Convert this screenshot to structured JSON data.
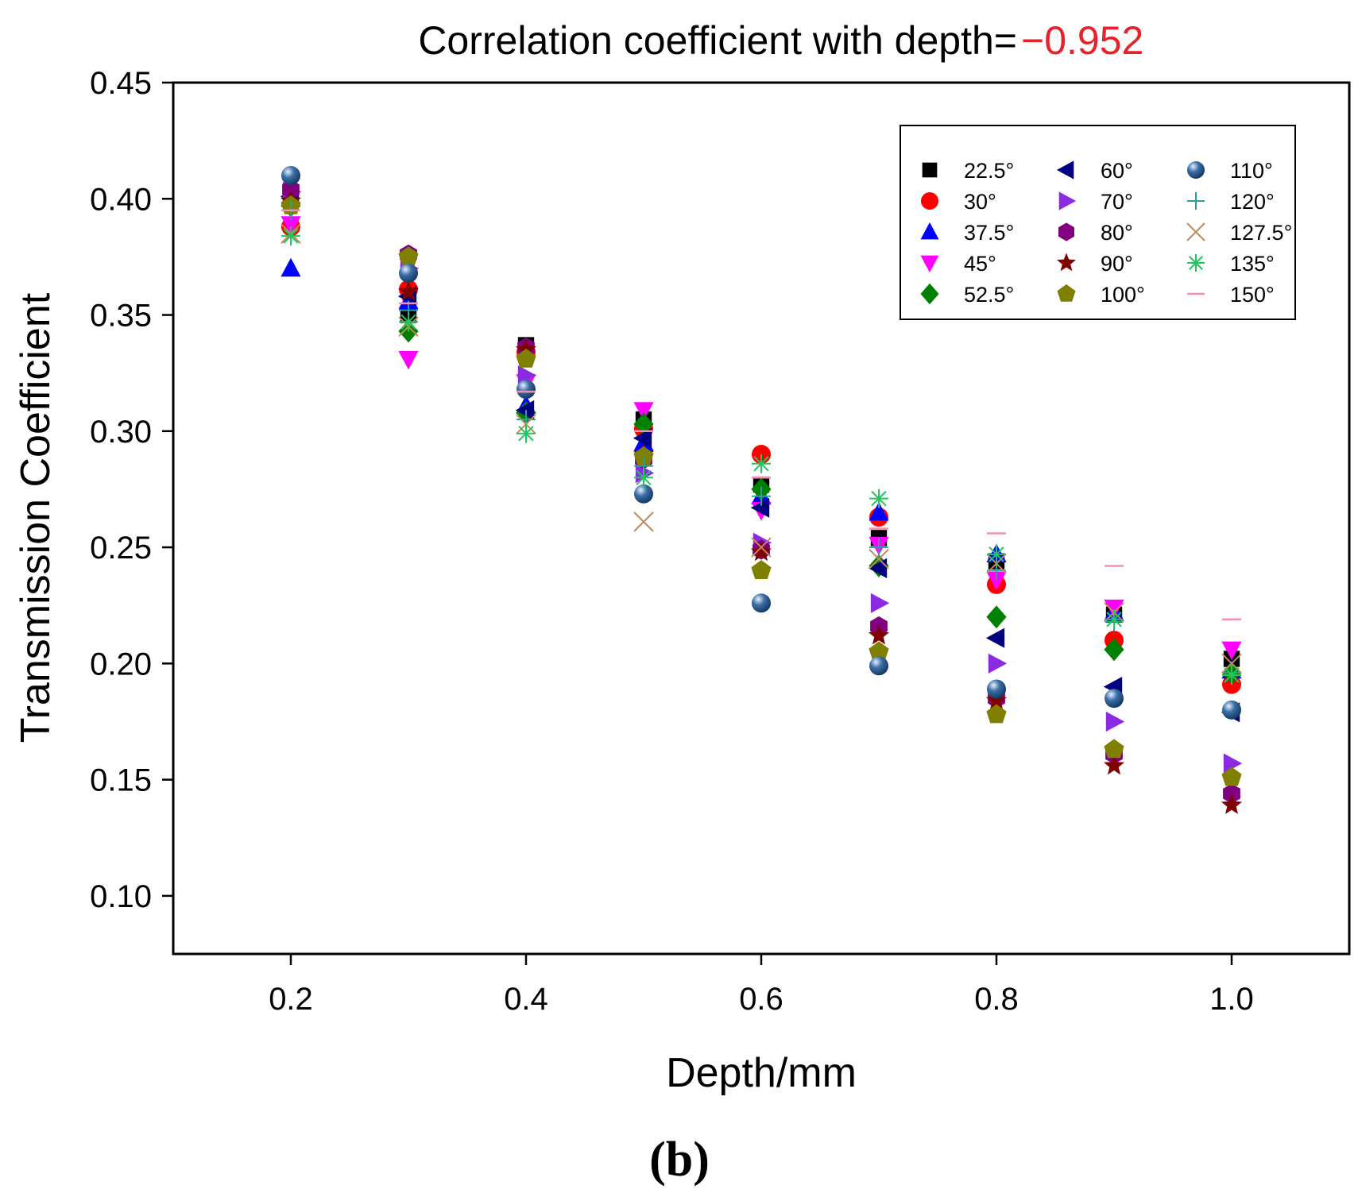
{
  "chart_data": {
    "type": "scatter",
    "title": "Correlation coefficient with depth=",
    "correlation_value": "−0.952",
    "xlabel": "Depth/mm",
    "ylabel": "Transmission Coefficient",
    "panel_label": "(b)",
    "xlim": [
      0.1,
      1.1
    ],
    "ylim": [
      0.075,
      0.45
    ],
    "xticks": [
      0.2,
      0.4,
      0.6,
      0.8,
      1.0
    ],
    "xtick_labels": [
      "0.2",
      "0.4",
      "0.6",
      "0.8",
      "1.0"
    ],
    "yticks": [
      0.1,
      0.15,
      0.2,
      0.25,
      0.3,
      0.35,
      0.4,
      0.45
    ],
    "ytick_labels": [
      "0.10",
      "0.15",
      "0.20",
      "0.25",
      "0.30",
      "0.35",
      "0.40",
      "0.45"
    ],
    "x": [
      0.2,
      0.3,
      0.4,
      0.5,
      0.6,
      0.7,
      0.8,
      0.9,
      1.0
    ],
    "legend_position": "top-right",
    "series": [
      {
        "name": "22.5°",
        "marker": "square",
        "color": "#000000",
        "values": [
          0.402,
          0.35,
          0.337,
          0.305,
          0.277,
          0.254,
          0.244,
          0.221,
          0.202
        ]
      },
      {
        "name": "30°",
        "marker": "circle",
        "color": "#ff0000",
        "values": [
          0.388,
          0.361,
          0.334,
          0.301,
          0.29,
          0.263,
          0.234,
          0.21,
          0.191
        ]
      },
      {
        "name": "37.5°",
        "marker": "triangle-up",
        "color": "#0000ff",
        "values": [
          0.37,
          0.356,
          0.311,
          0.295,
          0.272,
          0.265,
          0.247,
          0.222,
          0.197
        ]
      },
      {
        "name": "45°",
        "marker": "triangle-down",
        "color": "#ff00ff",
        "values": [
          0.389,
          0.331,
          0.321,
          0.309,
          0.266,
          0.251,
          0.236,
          0.224,
          0.206
        ]
      },
      {
        "name": "52.5°",
        "marker": "diamond",
        "color": "#008000",
        "values": [
          0.397,
          0.343,
          0.308,
          0.303,
          0.275,
          0.242,
          0.22,
          0.206,
          0.196
        ]
      },
      {
        "name": "60°",
        "marker": "triangle-left",
        "color": "#000080",
        "values": [
          0.401,
          0.358,
          0.309,
          0.297,
          0.267,
          0.241,
          0.211,
          0.19,
          0.179
        ]
      },
      {
        "name": "70°",
        "marker": "triangle-right",
        "color": "#8a2be2",
        "values": [
          0.403,
          0.37,
          0.324,
          0.282,
          0.252,
          0.226,
          0.2,
          0.175,
          0.157
        ]
      },
      {
        "name": "80°",
        "marker": "hexagon",
        "color": "#800080",
        "values": [
          0.404,
          0.376,
          0.336,
          0.288,
          0.249,
          0.216,
          0.185,
          0.161,
          0.144
        ]
      },
      {
        "name": "90°",
        "marker": "star",
        "color": "#800000",
        "values": [
          0.399,
          0.36,
          0.335,
          0.29,
          0.248,
          0.212,
          0.184,
          0.156,
          0.139
        ]
      },
      {
        "name": "100°",
        "marker": "pentagon",
        "color": "#808000",
        "values": [
          0.397,
          0.375,
          0.331,
          0.289,
          0.24,
          0.205,
          0.178,
          0.163,
          0.151
        ]
      },
      {
        "name": "110°",
        "marker": "sphere",
        "color": "#3a6ea5",
        "values": [
          0.41,
          0.368,
          0.318,
          0.273,
          0.226,
          0.199,
          0.189,
          0.185,
          0.18
        ]
      },
      {
        "name": "120°",
        "marker": "plus",
        "color": "#2aa198",
        "values": [
          0.395,
          0.352,
          0.305,
          0.285,
          0.272,
          0.25,
          0.24,
          0.218,
          0.196
        ]
      },
      {
        "name": "127.5°",
        "marker": "x",
        "color": "#c08a5a",
        "values": [
          0.385,
          0.345,
          0.303,
          0.261,
          0.25,
          0.245,
          0.243,
          0.222,
          0.2
        ]
      },
      {
        "name": "135°",
        "marker": "asterisk",
        "color": "#22c55e",
        "values": [
          0.384,
          0.347,
          0.299,
          0.28,
          0.286,
          0.271,
          0.247,
          0.219,
          0.195
        ]
      },
      {
        "name": "150°",
        "marker": "dash",
        "color": "#f48fb1",
        "values": [
          0.395,
          0.355,
          0.317,
          0.3,
          0.28,
          0.258,
          0.256,
          0.242,
          0.219
        ]
      }
    ]
  }
}
